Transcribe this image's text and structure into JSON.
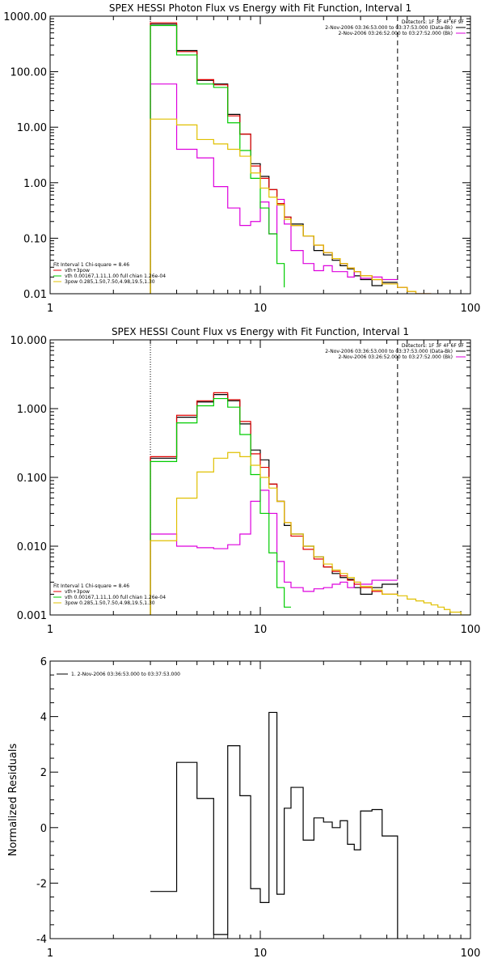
{
  "chart_data": [
    {
      "type": "line",
      "step": true,
      "title": "SPEX HESSI Photon Flux vs Energy with Fit Function, Interval 1",
      "xscale": "log",
      "yscale": "log",
      "xlim": [
        1,
        100
      ],
      "ylim": [
        0.01,
        1000
      ],
      "xticks": [
        1,
        10,
        100
      ],
      "xtick_labels": [
        "1",
        "10",
        "100"
      ],
      "yticks": [
        0.01,
        0.1,
        1,
        10,
        100,
        1000
      ],
      "ytick_labels": [
        "0.01",
        "0.10",
        "1.00",
        "10.00",
        "100.00",
        "1000.00"
      ],
      "vlines": [
        {
          "x": 3,
          "style": "dotted"
        },
        {
          "x": 45,
          "style": "dashed"
        }
      ],
      "legend_top": {
        "detectors": "Detectors: 1F 3F 4F 6F 9F",
        "entries": [
          {
            "label": "2-Nov-2006 03:36:53.000 to 03:37:53.000 (Data-Bk)",
            "color": "#000000"
          },
          {
            "label": "2-Nov-2006 03:26:52.000 to 03:27:52.000 (Bk)",
            "color": "#dd00dd"
          }
        ]
      },
      "legend_bottom": {
        "header": "Fit Interval 1   Chi-square = 8.46",
        "entries": [
          {
            "label": "vth+3pow",
            "color": "#e00000"
          },
          {
            "label": "vth 0.00167,1.11,1.00  full chian 1.26e-04",
            "color": "#00cc00"
          },
          {
            "label": "3pow 0.285,1.50,7.50,4.98,19.5,1.30",
            "color": "#e0c000"
          }
        ]
      },
      "series": [
        {
          "color": "#000000",
          "edges": [
            3,
            4,
            5,
            6,
            7,
            8,
            9,
            10,
            11,
            12,
            13,
            14,
            16,
            18,
            20,
            22,
            24,
            26,
            28,
            30,
            34,
            38,
            45
          ],
          "values": [
            720,
            240,
            70,
            60,
            17,
            7.5,
            2.2,
            1.3,
            0.75,
            0.4,
            0.24,
            0.18,
            0.11,
            0.06,
            0.05,
            0.04,
            0.032,
            0.028,
            0.021,
            0.018,
            0.014,
            0.016
          ]
        },
        {
          "color": "#dd00dd",
          "edges": [
            3,
            4,
            5,
            6,
            7,
            8,
            9,
            10,
            11,
            12,
            13,
            14,
            16,
            18,
            20,
            22,
            24,
            26,
            28,
            30,
            34,
            38,
            45
          ],
          "values": [
            60,
            4,
            2.8,
            0.85,
            0.35,
            0.17,
            0.2,
            0.45,
            0.12,
            0.5,
            0.18,
            0.06,
            0.035,
            0.026,
            0.032,
            0.025,
            0.025,
            0.02,
            0.025,
            0.019,
            0.02,
            0.018
          ]
        },
        {
          "color": "#e00000",
          "edges": [
            3,
            4,
            5,
            6,
            7,
            8,
            9,
            10,
            11,
            12,
            13,
            14,
            16,
            18,
            20,
            22,
            24,
            26,
            28,
            30,
            34,
            38,
            45,
            50,
            55,
            60,
            65
          ],
          "values": [
            760,
            230,
            72,
            58,
            16,
            7.5,
            2.0,
            1.2,
            0.75,
            0.42,
            0.24,
            0.17,
            0.11,
            0.075,
            0.055,
            0.043,
            0.035,
            0.029,
            0.025,
            0.021,
            0.018,
            0.015,
            0.013,
            0.011,
            0.0095,
            0.0085
          ]
        },
        {
          "color": "#00cc00",
          "edges": [
            3,
            4,
            5,
            6,
            7,
            8,
            9,
            10,
            11,
            12,
            13
          ],
          "values": [
            680,
            200,
            60,
            52,
            12,
            3.8,
            1.2,
            0.35,
            0.12,
            0.035,
            0.013
          ]
        },
        {
          "color": "#e0c000",
          "edges": [
            3,
            4,
            5,
            6,
            7,
            8,
            9,
            10,
            11,
            12,
            13,
            14,
            16,
            18,
            20,
            22,
            24,
            26,
            28,
            30,
            34,
            38,
            45,
            50,
            55,
            60,
            65
          ],
          "values": [
            14,
            11,
            6,
            5,
            4,
            3,
            1.5,
            0.8,
            0.55,
            0.4,
            0.22,
            0.17,
            0.11,
            0.075,
            0.055,
            0.043,
            0.035,
            0.029,
            0.025,
            0.021,
            0.018,
            0.015,
            0.013,
            0.011,
            0.0095,
            0.0085
          ]
        }
      ]
    },
    {
      "type": "line",
      "step": true,
      "title": "SPEX HESSI Count Flux vs Energy with Fit Function, Interval 1",
      "xscale": "log",
      "yscale": "log",
      "xlim": [
        1,
        100
      ],
      "ylim": [
        0.001,
        10
      ],
      "xticks": [
        1,
        10,
        100
      ],
      "xtick_labels": [
        "1",
        "10",
        "100"
      ],
      "yticks": [
        0.001,
        0.01,
        0.1,
        1,
        10
      ],
      "ytick_labels": [
        "0.001",
        "0.010",
        "0.100",
        "1.000",
        "10.000"
      ],
      "vlines": [
        {
          "x": 3,
          "style": "dotted"
        },
        {
          "x": 45,
          "style": "dashed"
        }
      ],
      "legend_top": {
        "detectors": "Detectors: 1F 3F 4F 6F 9F",
        "entries": [
          {
            "label": "2-Nov-2006 03:36:53.000 to 03:37:53.000 (Data-Bk)",
            "color": "#000000"
          },
          {
            "label": "2-Nov-2006 03:26:52.000 to 03:27:52.000 (Bk)",
            "color": "#dd00dd"
          }
        ]
      },
      "legend_bottom": {
        "header": "Fit Interval 1   Chi-square = 8.46",
        "entries": [
          {
            "label": "vth+3pow",
            "color": "#e00000"
          },
          {
            "label": "vth 0.00167,1.11,1.00  full chian 1.26e-04",
            "color": "#00cc00"
          },
          {
            "label": "3pow 0.285,1.50,7.50,4.98,19.5,1.30",
            "color": "#e0c000"
          }
        ]
      },
      "series": [
        {
          "color": "#000000",
          "edges": [
            3,
            4,
            5,
            6,
            7,
            8,
            9,
            10,
            11,
            12,
            13,
            14,
            16,
            18,
            20,
            22,
            24,
            26,
            28,
            30,
            34,
            38,
            45
          ],
          "values": [
            0.19,
            0.75,
            1.25,
            1.6,
            1.3,
            0.6,
            0.25,
            0.18,
            0.08,
            0.045,
            0.02,
            0.015,
            0.01,
            0.007,
            0.005,
            0.004,
            0.0035,
            0.0033,
            0.0025,
            0.002,
            0.0025,
            0.0028
          ]
        },
        {
          "color": "#dd00dd",
          "edges": [
            3,
            4,
            5,
            6,
            7,
            8,
            9,
            10,
            11,
            12,
            13,
            14,
            16,
            18,
            20,
            22,
            24,
            26,
            28,
            30,
            34,
            38,
            45
          ],
          "values": [
            0.015,
            0.01,
            0.0095,
            0.0092,
            0.0105,
            0.015,
            0.045,
            0.065,
            0.03,
            0.006,
            0.003,
            0.0025,
            0.0022,
            0.0024,
            0.0025,
            0.0028,
            0.003,
            0.0025,
            0.003,
            0.0028,
            0.0032,
            0.0032
          ]
        },
        {
          "color": "#e00000",
          "edges": [
            3,
            4,
            5,
            6,
            7,
            8,
            9,
            10,
            11,
            12,
            13,
            14,
            16,
            18,
            20,
            22,
            24,
            26,
            28,
            30,
            34,
            38,
            45
          ],
          "values": [
            0.2,
            0.8,
            1.3,
            1.7,
            1.35,
            0.65,
            0.22,
            0.14,
            0.08,
            0.045,
            0.022,
            0.014,
            0.009,
            0.0065,
            0.005,
            0.0043,
            0.0037,
            0.0032,
            0.0028,
            0.0025,
            0.0022,
            0.002
          ]
        },
        {
          "color": "#00cc00",
          "edges": [
            3,
            4,
            5,
            6,
            7,
            8,
            9,
            10,
            11,
            12,
            13,
            14
          ],
          "values": [
            0.17,
            0.62,
            1.1,
            1.4,
            1.05,
            0.42,
            0.11,
            0.03,
            0.008,
            0.0025,
            0.0013
          ]
        },
        {
          "color": "#e0c000",
          "edges": [
            3,
            4,
            5,
            6,
            7,
            8,
            9,
            10,
            11,
            12,
            13,
            14,
            16,
            18,
            20,
            22,
            24,
            26,
            28,
            30,
            34,
            38,
            45,
            50,
            55,
            60,
            65,
            70,
            75,
            80,
            90,
            100
          ],
          "values": [
            0.012,
            0.05,
            0.12,
            0.19,
            0.23,
            0.2,
            0.15,
            0.1,
            0.07,
            0.045,
            0.022,
            0.015,
            0.01,
            0.007,
            0.0055,
            0.0045,
            0.004,
            0.0035,
            0.003,
            0.0026,
            0.0023,
            0.002,
            0.0019,
            0.0017,
            0.0016,
            0.0015,
            0.0014,
            0.0013,
            0.0012,
            0.0011,
            0.001
          ]
        }
      ]
    },
    {
      "type": "line",
      "step": true,
      "title": "",
      "xscale": "log",
      "yscale": "linear",
      "xlim": [
        1,
        100
      ],
      "ylim": [
        -4,
        6
      ],
      "ylabel": "Normalized Residuals",
      "xticks": [
        1,
        10,
        100
      ],
      "xtick_labels": [
        "1",
        "10",
        "100"
      ],
      "yticks": [
        -4,
        -2,
        0,
        2,
        4,
        6
      ],
      "ytick_labels": [
        "-4",
        "-2",
        "0",
        "2",
        "4",
        "6"
      ],
      "legend_top": {
        "entries": [
          {
            "label": "1.  2-Nov-2006 03:36:53.000 to 03:37:53.000",
            "color": "#000000"
          }
        ]
      },
      "series": [
        {
          "color": "#000000",
          "edges": [
            3,
            4,
            5,
            6,
            7,
            8,
            9,
            10,
            11,
            12,
            13,
            14,
            16,
            18,
            20,
            22,
            24,
            26,
            28,
            30,
            34,
            38,
            45
          ],
          "values": [
            -2.3,
            2.35,
            1.05,
            -3.85,
            2.95,
            1.15,
            -2.2,
            -2.7,
            4.15,
            -2.4,
            0.7,
            1.45,
            -0.45,
            0.35,
            0.2,
            0.0,
            0.25,
            -0.6,
            -0.8,
            0.6,
            0.65,
            -0.3
          ]
        }
      ]
    }
  ]
}
